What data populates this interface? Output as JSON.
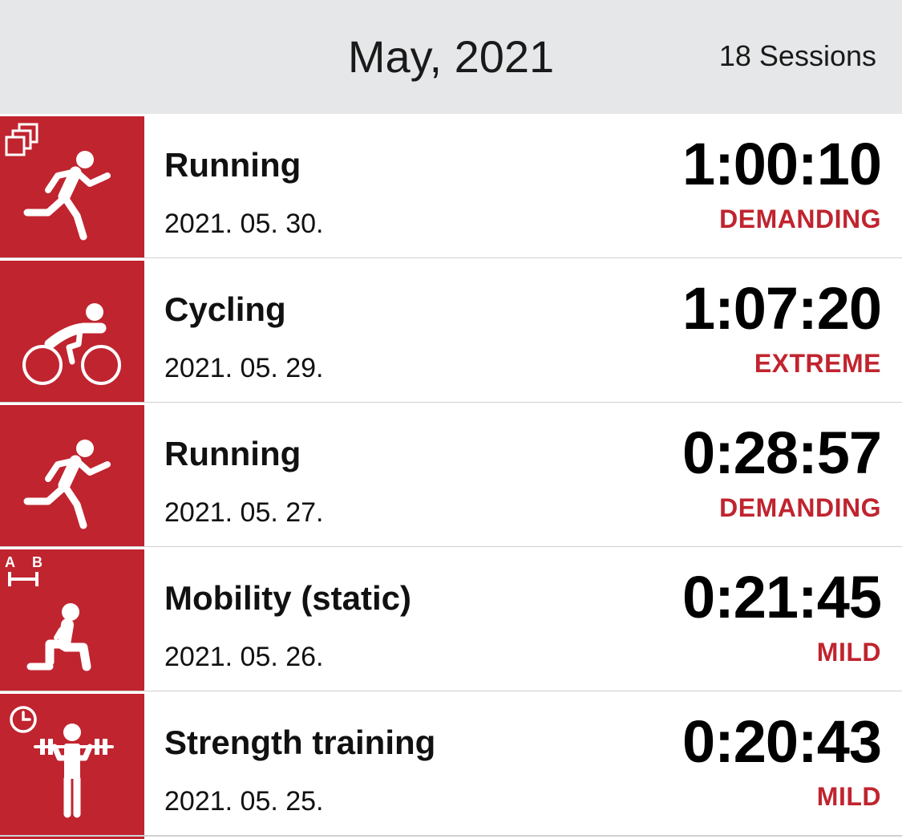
{
  "header": {
    "month": "May, 2021",
    "sessions": "18 Sessions"
  },
  "colors": {
    "accent": "#c0242f",
    "header_bg": "#e6e7e8"
  },
  "sessions": [
    {
      "sport": "Running",
      "date": "2021. 05. 30.",
      "duration": "1:00:10",
      "intensity": "DEMANDING",
      "icon": "running-icon",
      "badge": "multisport-icon"
    },
    {
      "sport": "Cycling",
      "date": "2021. 05. 29.",
      "duration": "1:07:20",
      "intensity": "EXTREME",
      "icon": "cycling-icon",
      "badge": ""
    },
    {
      "sport": "Running",
      "date": "2021. 05. 27.",
      "duration": "0:28:57",
      "intensity": "DEMANDING",
      "icon": "running-icon",
      "badge": ""
    },
    {
      "sport": "Mobility (static)",
      "date": "2021. 05. 26.",
      "duration": "0:21:45",
      "intensity": "MILD",
      "icon": "mobility-icon",
      "badge": "route-ab-icon"
    },
    {
      "sport": "Strength training",
      "date": "2021. 05. 25.",
      "duration": "0:20:43",
      "intensity": "MILD",
      "icon": "strength-icon",
      "badge": "timer-icon"
    }
  ]
}
